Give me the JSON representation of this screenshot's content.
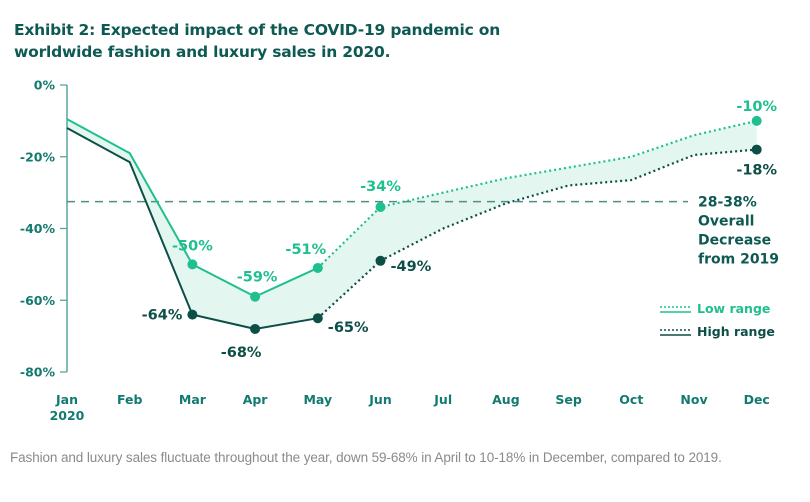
{
  "title": "Exhibit 2: Expected impact of the COVID-19 pandemic on worldwide fashion and luxury sales in 2020.",
  "caption": "Fashion and luxury sales fluctuate throughout the year, down 59-68% in April to 10-18% in December, compared to 2019.",
  "colors": {
    "low": "#1fbf8f",
    "high": "#0d4f47",
    "band": "#e3f7f0",
    "axis": "#5aa69c",
    "reference": "#4f8f86"
  },
  "chart_data": {
    "type": "line",
    "title": "Exhibit 2: Expected impact of the COVID-19 pandemic on worldwide fashion and luxury sales in 2020.",
    "xlabel": "",
    "ylabel": "",
    "categories": [
      "Jan\n2020",
      "Feb",
      "Mar",
      "Apr",
      "May",
      "Jun",
      "Jul",
      "Aug",
      "Sep",
      "Oct",
      "Nov",
      "Dec"
    ],
    "ylim": [
      -80,
      0
    ],
    "yticks": [
      0,
      -20,
      -40,
      -60,
      -80
    ],
    "ytick_labels": [
      "0%",
      "-20%",
      "-40%",
      "-60%",
      "-80%"
    ],
    "grid": false,
    "legend": "right",
    "actual_through_index": 4,
    "series": [
      {
        "name": "Low range",
        "values": [
          -9.5,
          -19,
          -50,
          -59,
          -51,
          -34,
          -30,
          -26,
          -23,
          -20,
          -14,
          -10
        ],
        "labels": {
          "2": "-50%",
          "3": "-59%",
          "4": "-51%",
          "5": "-34%",
          "11": "-10%"
        },
        "markers": [
          2,
          3,
          4,
          5,
          11
        ]
      },
      {
        "name": "High range",
        "values": [
          -12,
          -21.5,
          -64,
          -68,
          -65,
          -49,
          -40,
          -33,
          -28,
          -26.5,
          -19.5,
          -18
        ],
        "labels": {
          "2": "-64%",
          "3": "-68%",
          "4": "-65%",
          "5": "-49%",
          "11": "-18%"
        },
        "markers": [
          2,
          3,
          4,
          5,
          11
        ]
      }
    ],
    "reference_line": {
      "value": -32.5,
      "style": "dashed",
      "annotation": [
        "28-38%",
        "Overall",
        "Decrease",
        "from 2019"
      ]
    }
  }
}
